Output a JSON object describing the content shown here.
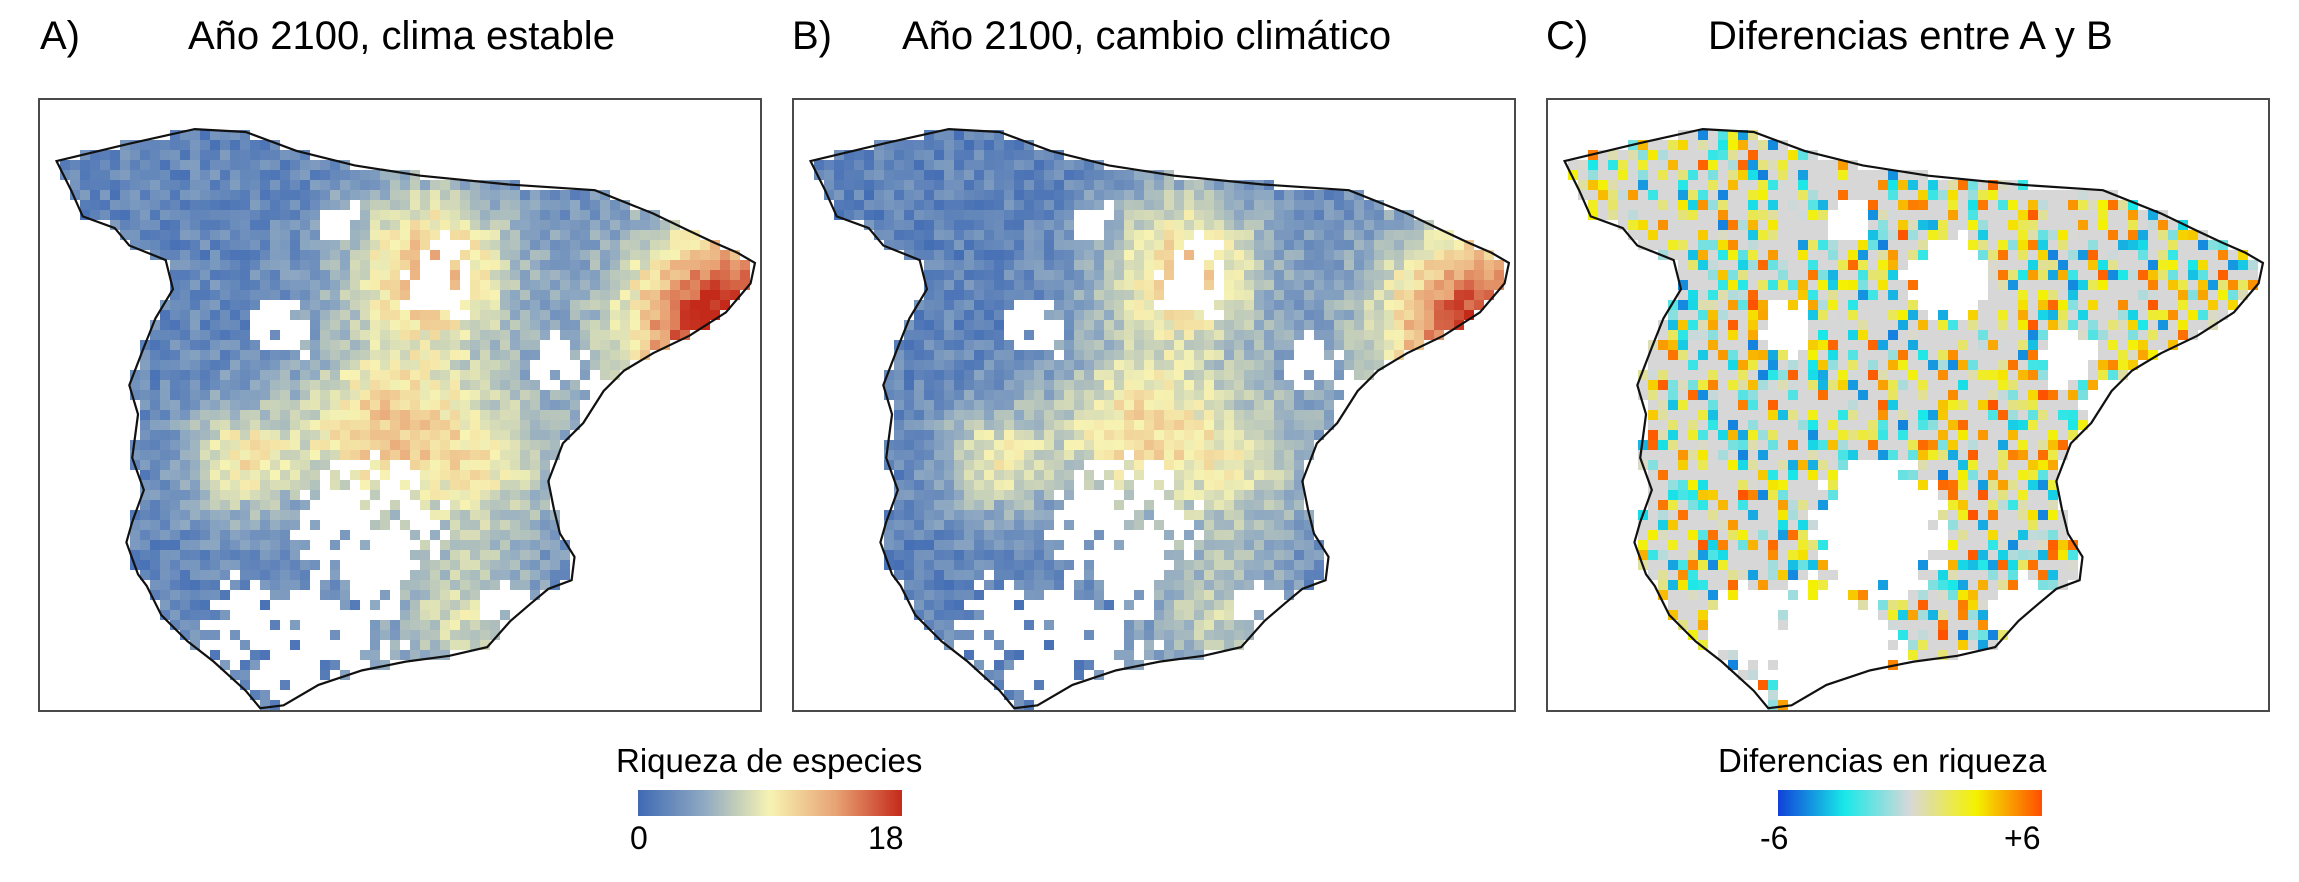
{
  "panels": [
    {
      "letter": "A)",
      "title": "Año 2100, clima estable",
      "scale": "richness"
    },
    {
      "letter": "B)",
      "title": "Año 2100, cambio climático",
      "scale": "richness"
    },
    {
      "letter": "C)",
      "title": "Diferencias entre A y B",
      "scale": "difference"
    }
  ],
  "legends": {
    "richness": {
      "title": "Riqueza de especies",
      "min_label": "0",
      "max_label": "18",
      "min": 0,
      "max": 18,
      "colors": [
        "#3f6ab4",
        "#8fa9c2",
        "#f7f3b2",
        "#e8a274",
        "#c42a1a"
      ]
    },
    "difference": {
      "title": "Diferencias en riqueza",
      "min_label": "-6",
      "max_label": "+6",
      "min": -6,
      "max": 6,
      "colors": [
        "#1140d8",
        "#18e8e8",
        "#d8d8d8",
        "#f4f200",
        "#ff4e00"
      ]
    }
  },
  "background_color": "#d7d7d7"
}
